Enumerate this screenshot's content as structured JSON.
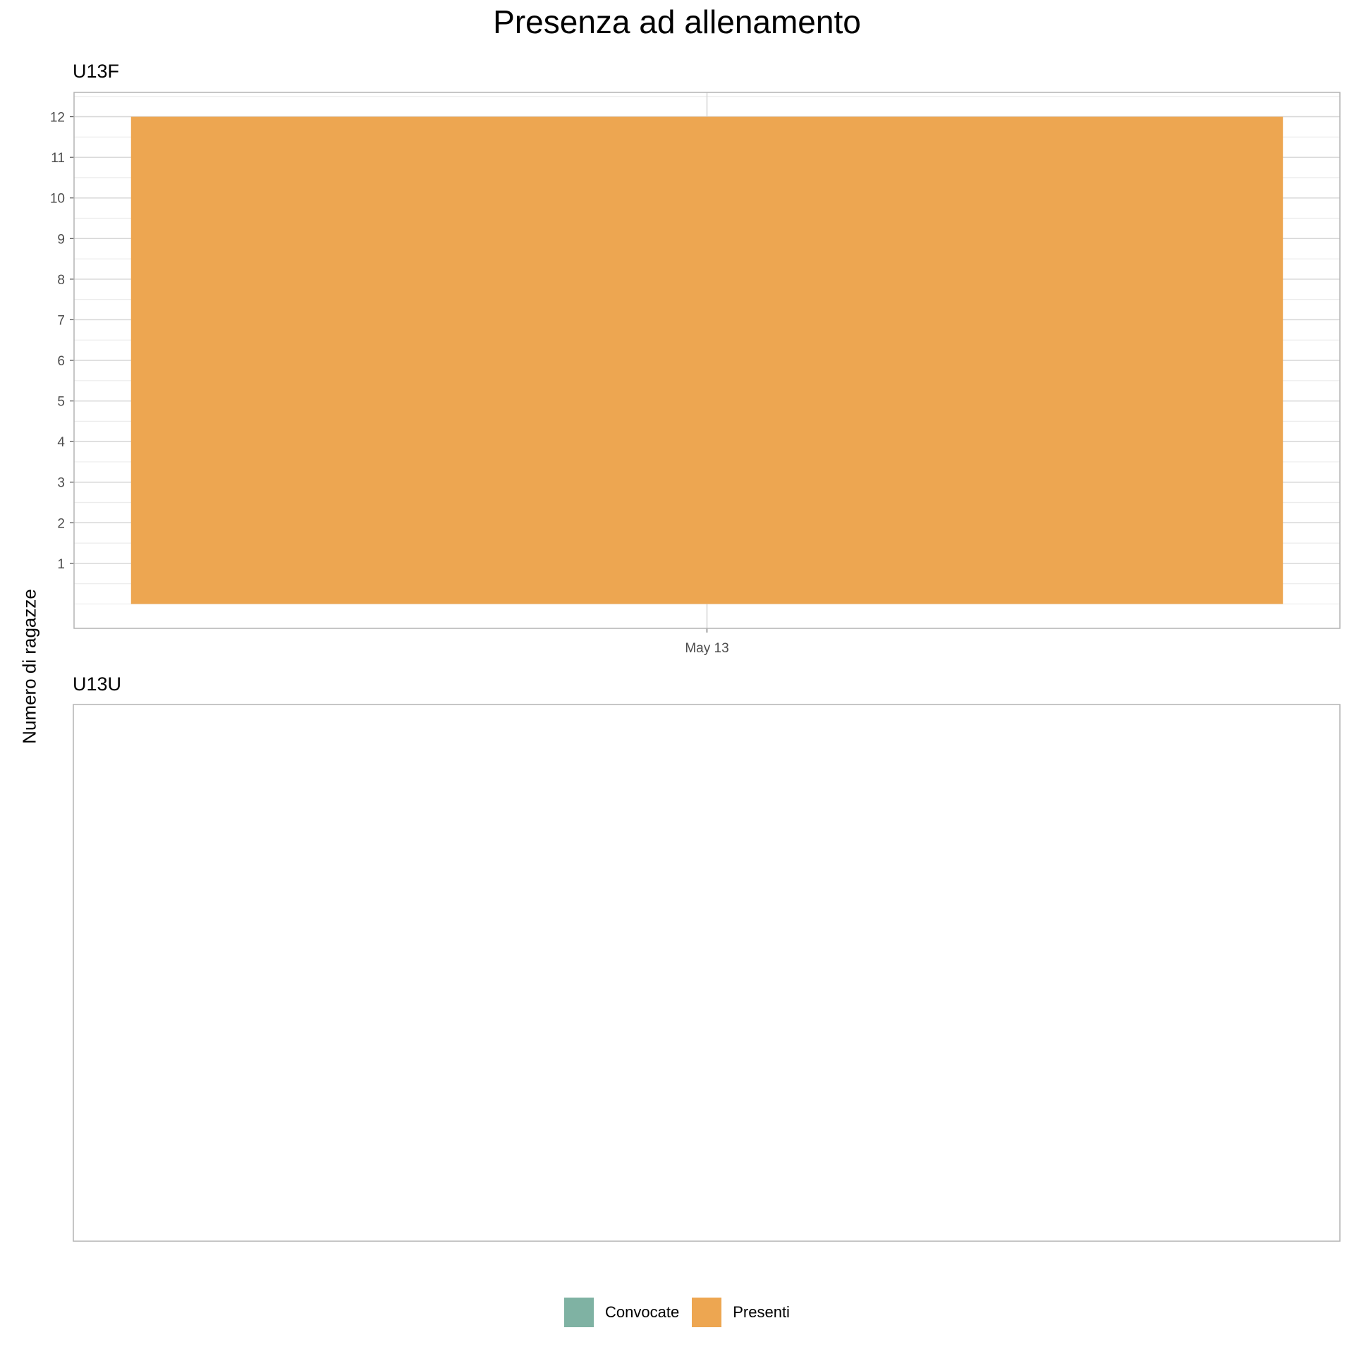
{
  "chart_data": {
    "type": "bar",
    "title": "Presenza ad allenamento",
    "xlabel": "",
    "ylabel": "Numero di ragazze",
    "panels": [
      {
        "name": "U13F",
        "categories": [
          "May 13"
        ],
        "series": [
          {
            "name": "Convocate",
            "values": [
              0
            ]
          },
          {
            "name": "Presenti",
            "values": [
              12
            ]
          }
        ],
        "ylim": [
          -0.6,
          12.6
        ],
        "yticks": [
          1,
          2,
          3,
          4,
          5,
          6,
          7,
          8,
          9,
          10,
          11,
          12
        ],
        "grid": true
      },
      {
        "name": "U13U",
        "categories": [],
        "series": [],
        "grid": false
      }
    ],
    "legend": {
      "placement": "bottom",
      "entries": [
        {
          "name": "Convocate",
          "color": "#7fb2a3"
        },
        {
          "name": "Presenti",
          "color": "#eda651"
        }
      ]
    }
  }
}
